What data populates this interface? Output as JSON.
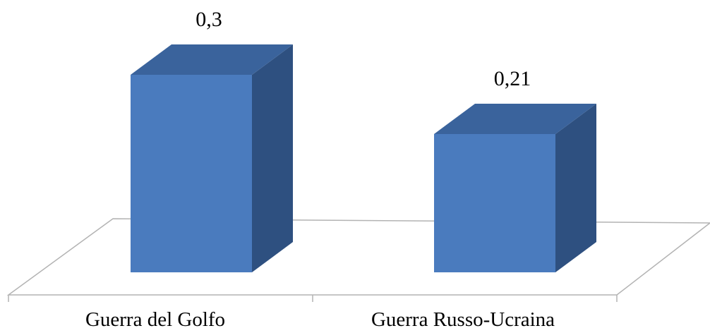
{
  "chart_data": {
    "type": "bar",
    "style": "3d",
    "categories": [
      "Guerra del Golfo",
      "Guerra Russo-Ucraina"
    ],
    "values": [
      0.3,
      0.21
    ],
    "data_labels": [
      "0,3",
      "0,21"
    ],
    "title": "",
    "xlabel": "",
    "ylabel": "",
    "ylim": [
      0,
      0.3
    ],
    "grid": false,
    "legend": "none",
    "colors": {
      "bar_front": "#4a7bbe",
      "bar_top": "#3a639c",
      "bar_side": "#2e5080",
      "floor_line": "#b3b3b3"
    }
  }
}
